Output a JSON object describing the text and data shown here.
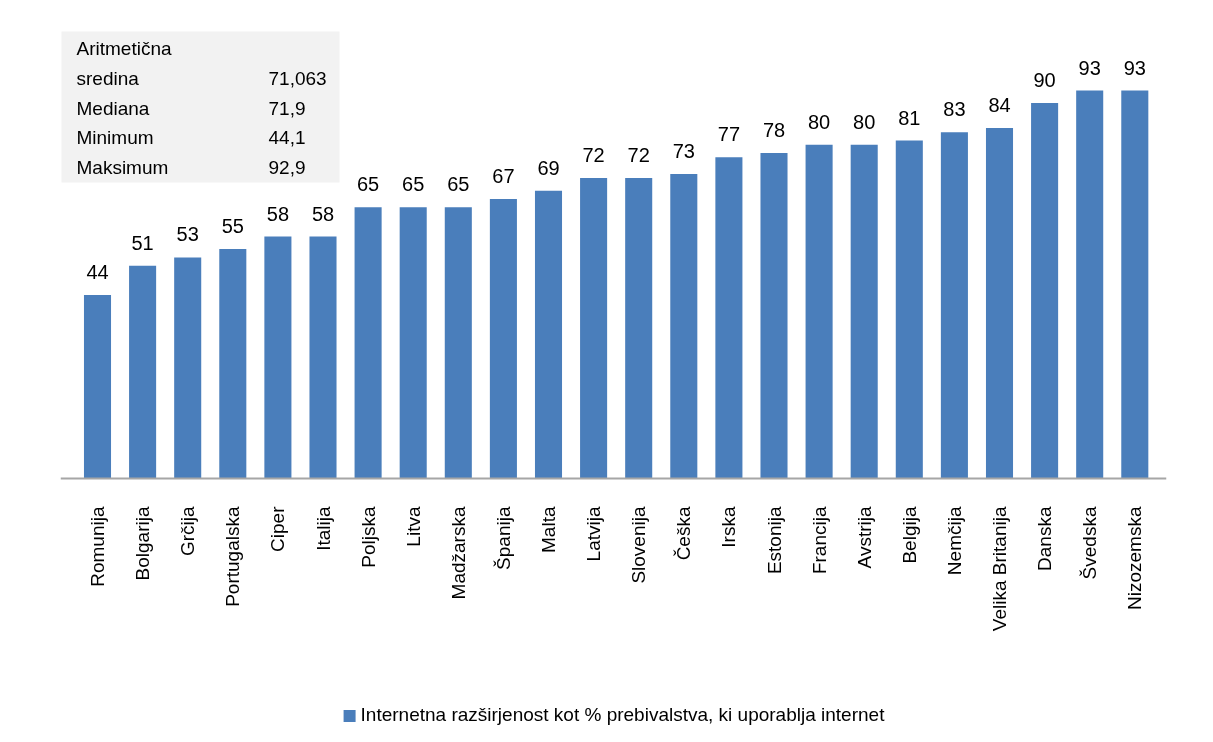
{
  "chart_data": {
    "type": "bar",
    "categories": [
      "Romunija",
      "Bolgarija",
      "Grčija",
      "Portugalska",
      "Ciper",
      "Italija",
      "Poljska",
      "Litva",
      "Madžarska",
      "Španija",
      "Malta",
      "Latvija",
      "Slovenija",
      "Češka",
      "Irska",
      "Estonija",
      "Francija",
      "Avstrija",
      "Belgija",
      "Nemčija",
      "Velika Britanija",
      "Danska",
      "Švedska",
      "Nizozemska"
    ],
    "series": [
      {
        "name": "Internetna razširjenost kot % prebivalstva, ki uporablja internet",
        "color": "#4a7ebb",
        "values": [
          44,
          51,
          53,
          55,
          58,
          58,
          65,
          65,
          65,
          67,
          69,
          72,
          72,
          73,
          77,
          78,
          80,
          80,
          81,
          83,
          84,
          90,
          93,
          93
        ]
      }
    ],
    "tick_labels": "x",
    "data_labels": true,
    "legend": "bottom",
    "annotations": [
      "Aritmetična sredina 71,063",
      "Mediana 71,9",
      "Minimum 44,1",
      "Maksimum 92,9"
    ]
  }
}
